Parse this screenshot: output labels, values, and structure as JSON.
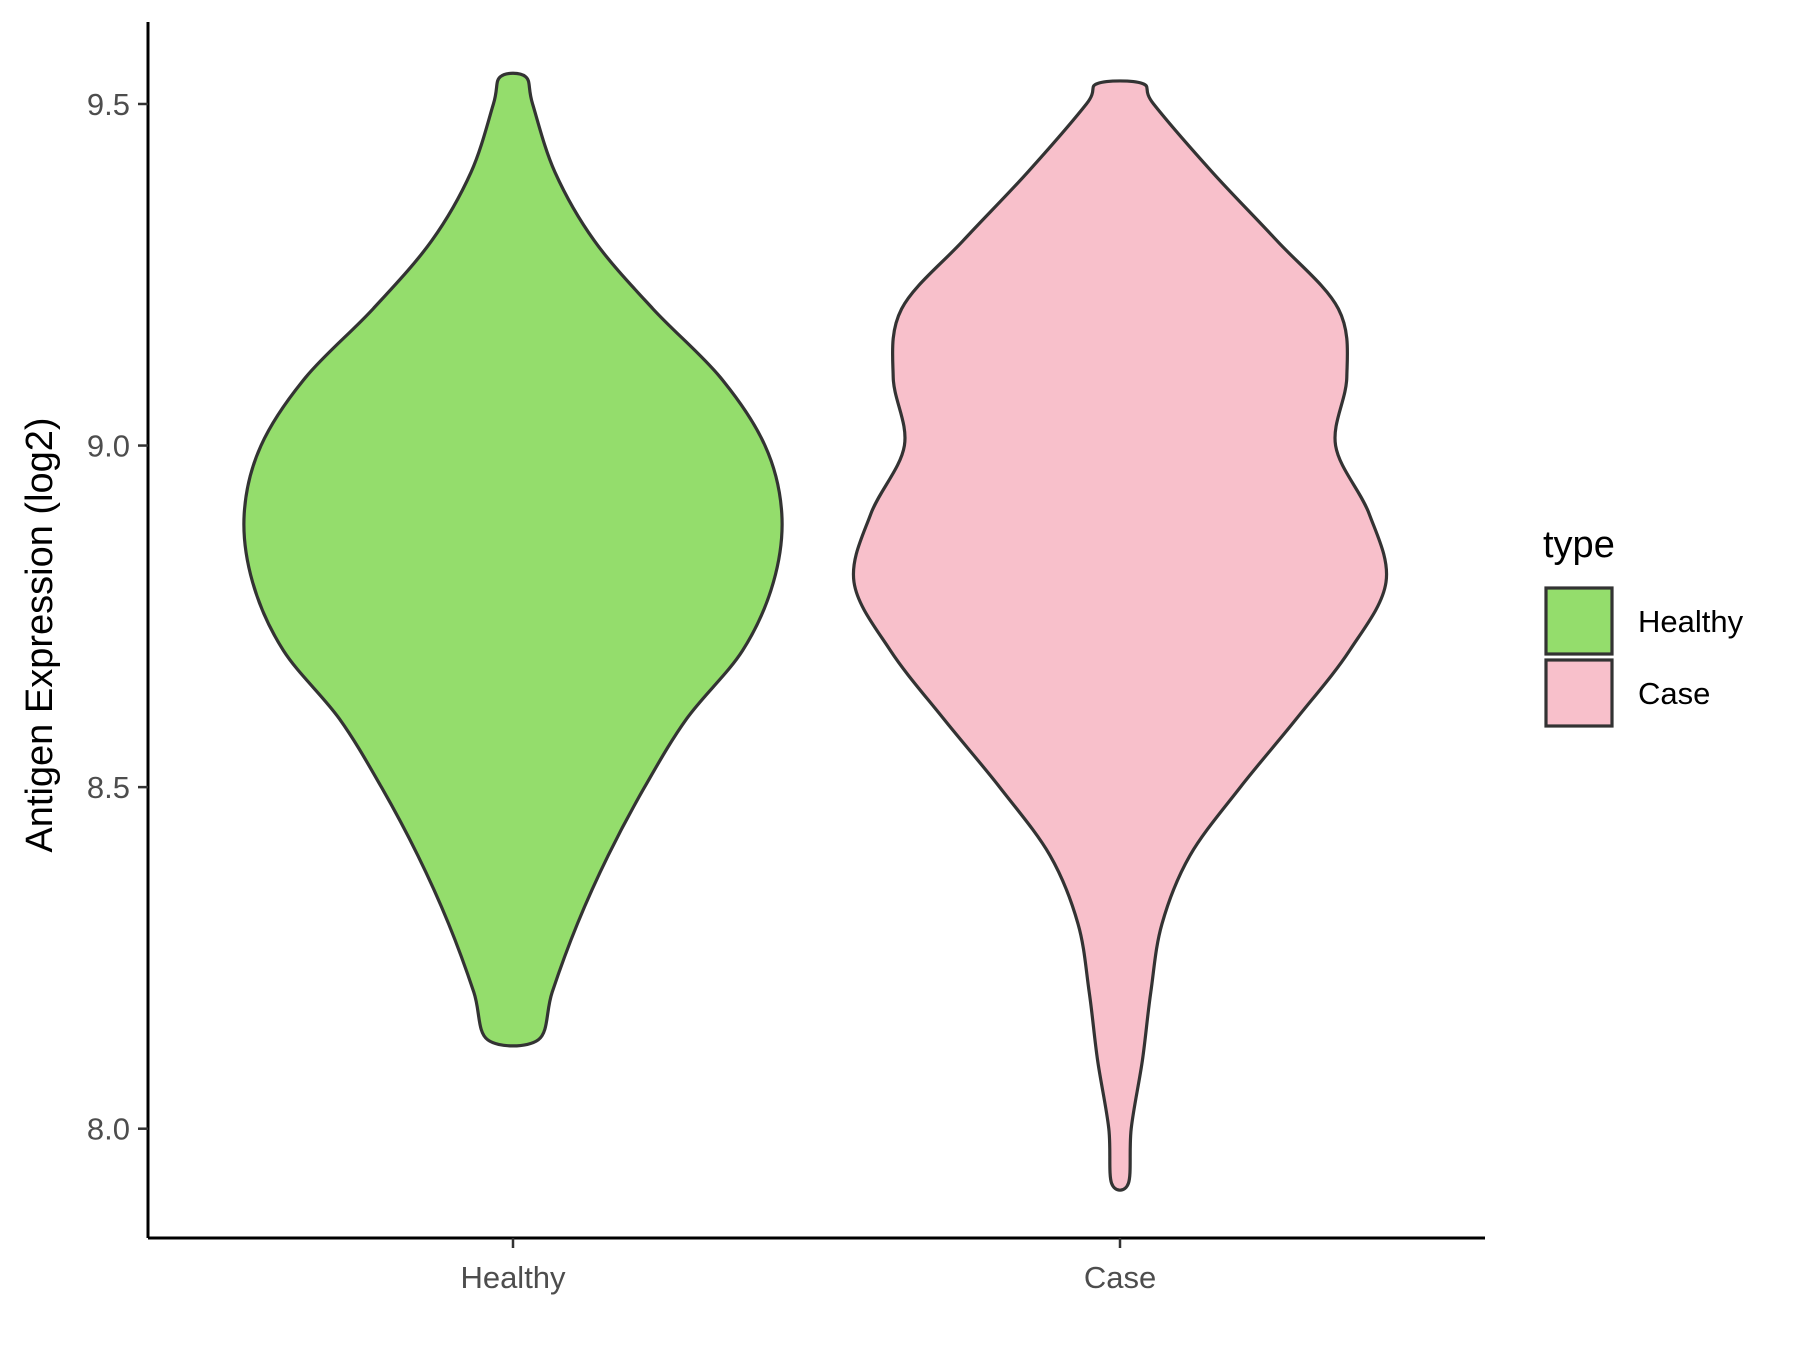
{
  "chart_data": {
    "type": "violin",
    "title": "",
    "xlabel": "",
    "ylabel": "Antigen Expression (log2)",
    "ylim": [
      7.84,
      9.62
    ],
    "yticks": [
      "8.0",
      "8.5",
      "9.0",
      "9.5"
    ],
    "categories": [
      "Healthy",
      "Case"
    ],
    "grid": false,
    "legend": {
      "title": "type",
      "position": "right",
      "entries": [
        "Healthy",
        "Case"
      ]
    },
    "series": [
      {
        "name": "Healthy",
        "color": "#94dd6c",
        "min": 8.13,
        "max": 9.54,
        "density_profile": [
          [
            8.13,
            0.09
          ],
          [
            8.2,
            0.14
          ],
          [
            8.3,
            0.23
          ],
          [
            8.4,
            0.34
          ],
          [
            8.5,
            0.47
          ],
          [
            8.6,
            0.62
          ],
          [
            8.7,
            0.82
          ],
          [
            8.8,
            0.93
          ],
          [
            8.9,
            0.96
          ],
          [
            9.0,
            0.9
          ],
          [
            9.1,
            0.74
          ],
          [
            9.2,
            0.5
          ],
          [
            9.3,
            0.29
          ],
          [
            9.4,
            0.15
          ],
          [
            9.5,
            0.07
          ],
          [
            9.54,
            0.045
          ]
        ]
      },
      {
        "name": "Case",
        "color": "#f8c0cb",
        "min": 7.92,
        "max": 9.53,
        "density_profile": [
          [
            7.92,
            0.03
          ],
          [
            8.0,
            0.04
          ],
          [
            8.1,
            0.08
          ],
          [
            8.2,
            0.11
          ],
          [
            8.3,
            0.15
          ],
          [
            8.4,
            0.25
          ],
          [
            8.5,
            0.43
          ],
          [
            8.6,
            0.63
          ],
          [
            8.7,
            0.82
          ],
          [
            8.8,
            0.95
          ],
          [
            8.9,
            0.89
          ],
          [
            9.0,
            0.77
          ],
          [
            9.1,
            0.81
          ],
          [
            9.2,
            0.78
          ],
          [
            9.3,
            0.56
          ],
          [
            9.4,
            0.33
          ],
          [
            9.5,
            0.12
          ],
          [
            9.53,
            0.08
          ]
        ]
      }
    ]
  }
}
